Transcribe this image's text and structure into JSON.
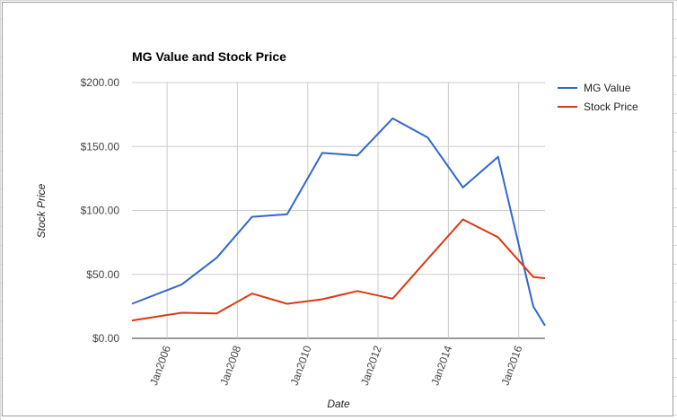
{
  "chart_data": {
    "type": "line",
    "title": "MG Value and Stock Price",
    "xlabel": "Date",
    "ylabel": "Stock Price",
    "x_tick_labels": [
      "Jan2006",
      "Jan2008",
      "Jan2010",
      "Jan2012",
      "Jan2014",
      "Jan2016"
    ],
    "y_tick_labels": [
      "$0.00",
      "$50.00",
      "$100.00",
      "$150.00",
      "$200.00"
    ],
    "xlim": [
      "2005-01-01",
      "2016-10-01"
    ],
    "ylim": [
      0,
      200
    ],
    "grid": true,
    "legend_position": "right",
    "series": [
      {
        "name": "MG Value",
        "color": "#3366cc",
        "points": [
          [
            "2005-01-01",
            27
          ],
          [
            "2006-06-01",
            42
          ],
          [
            "2007-06-01",
            63
          ],
          [
            "2008-06-01",
            95
          ],
          [
            "2009-06-01",
            97
          ],
          [
            "2010-06-01",
            145
          ],
          [
            "2011-06-01",
            143
          ],
          [
            "2012-06-01",
            172
          ],
          [
            "2013-06-01",
            157
          ],
          [
            "2014-06-01",
            118
          ],
          [
            "2015-06-01",
            142
          ],
          [
            "2016-06-01",
            25
          ],
          [
            "2016-10-01",
            10
          ]
        ]
      },
      {
        "name": "Stock Price",
        "color": "#dc3912",
        "points": [
          [
            "2005-01-01",
            14
          ],
          [
            "2006-06-01",
            20
          ],
          [
            "2007-06-01",
            19.5
          ],
          [
            "2008-06-01",
            35
          ],
          [
            "2009-06-01",
            27
          ],
          [
            "2010-06-01",
            30.5
          ],
          [
            "2011-06-01",
            37
          ],
          [
            "2012-06-01",
            31
          ],
          [
            "2013-06-01",
            62
          ],
          [
            "2014-06-01",
            93
          ],
          [
            "2015-06-01",
            79
          ],
          [
            "2016-06-01",
            48
          ],
          [
            "2016-10-01",
            47
          ]
        ]
      }
    ]
  }
}
